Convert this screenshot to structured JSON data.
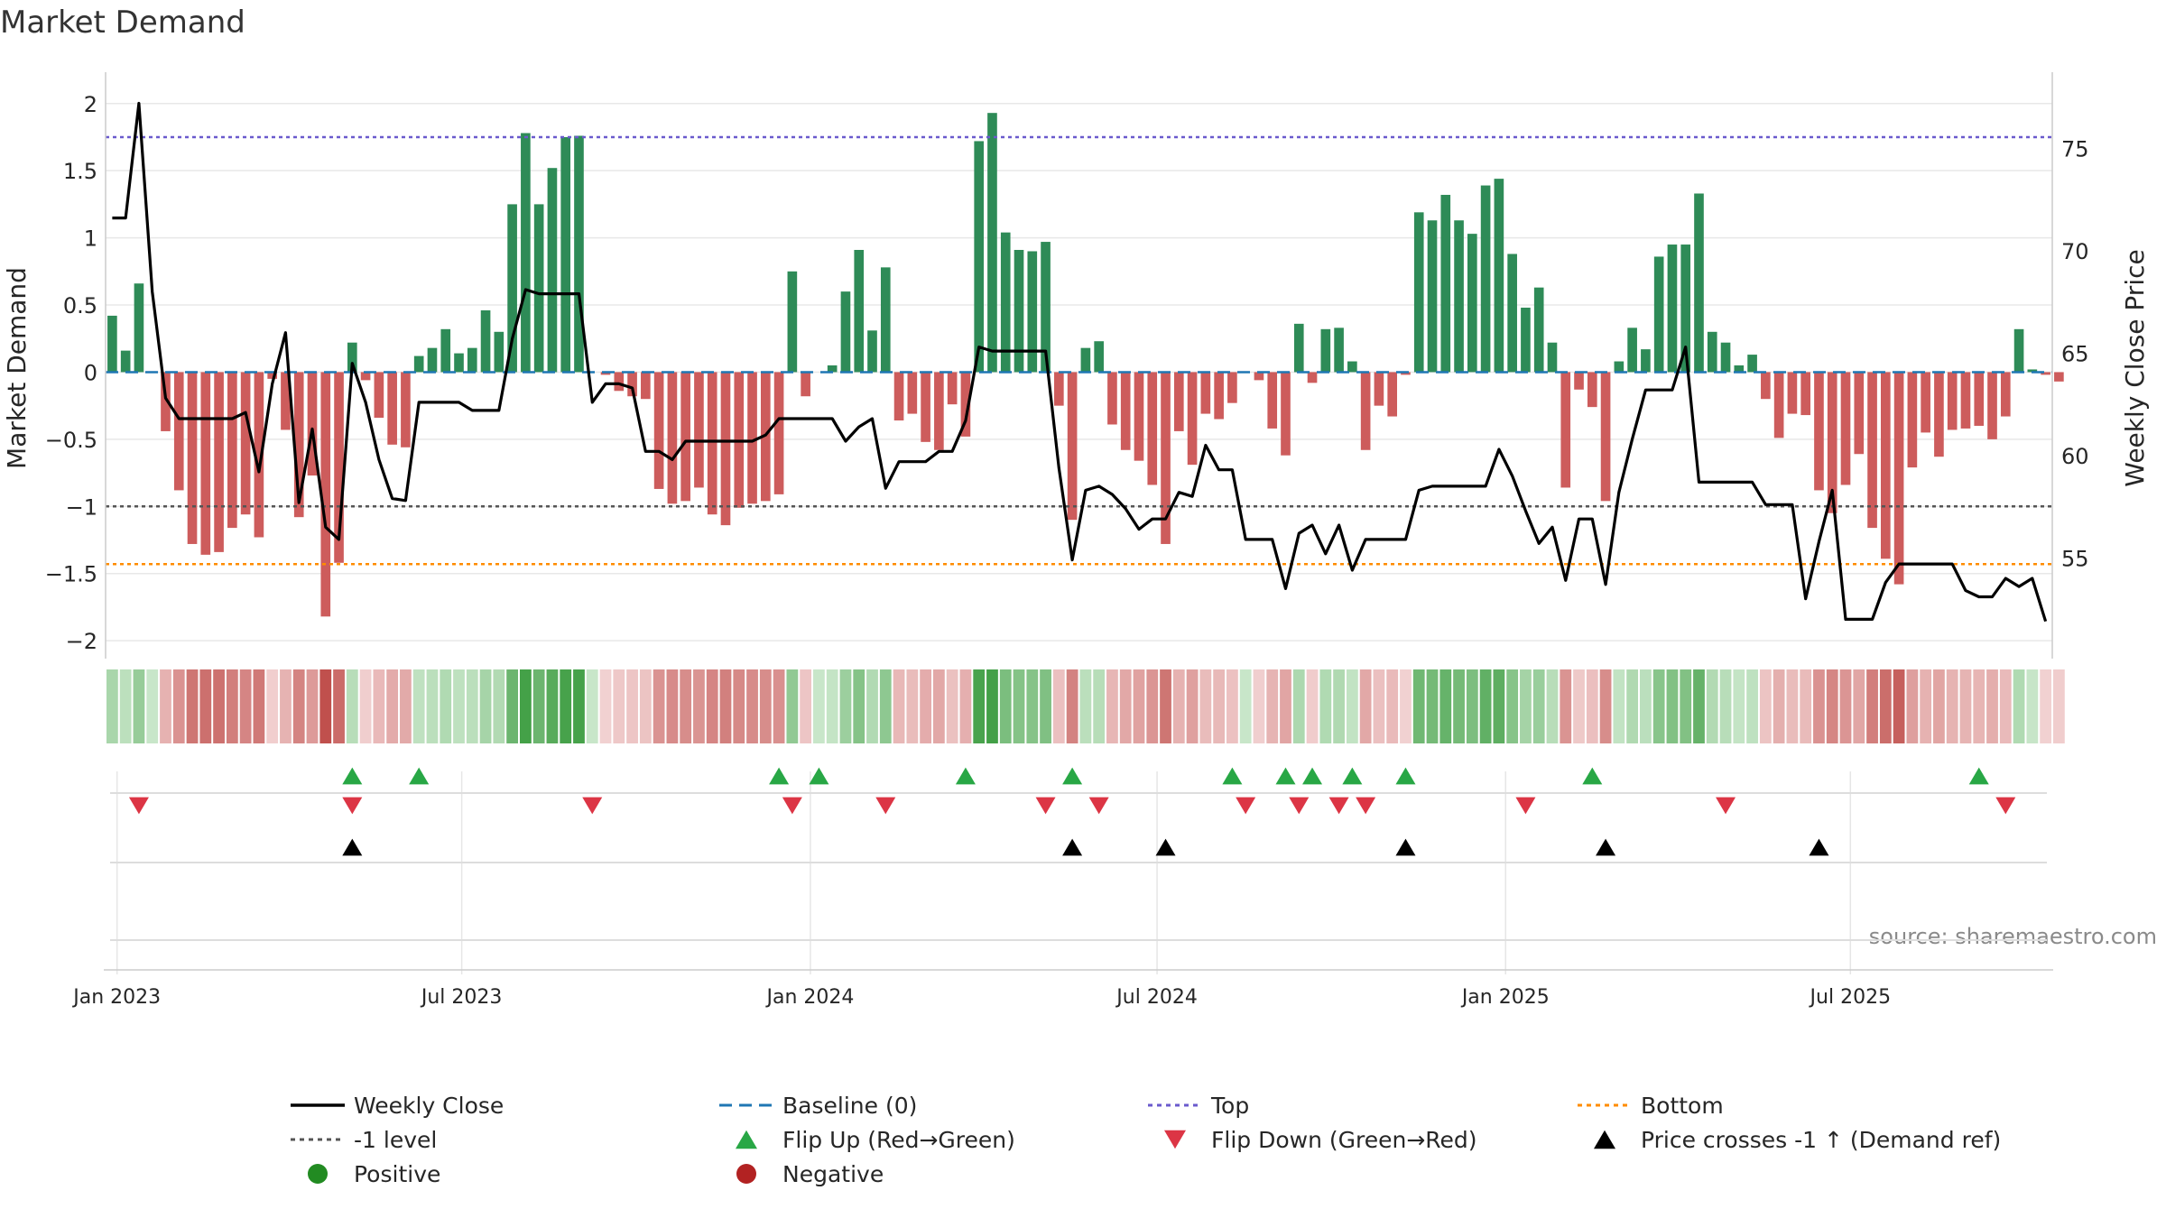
{
  "chart_data": {
    "type": "bar",
    "title": "Market Demand",
    "source": "source: sharemaestro.com",
    "ylabel_left": "Market Demand",
    "ylabel_right": "Weekly Close Price",
    "ylim_left": [
      -2.1,
      2.2
    ],
    "ylim_right": [
      50.3,
      78.5
    ],
    "yticks_left": [
      2,
      1.5,
      1,
      0.5,
      0,
      -0.5,
      -1,
      -1.5,
      -2
    ],
    "yticks_left_labels": [
      "2",
      "1.5",
      "1",
      "0.5",
      "0",
      "−0.5",
      "−1",
      "−1.5",
      "−2"
    ],
    "yticks_right": [
      75,
      70,
      65,
      60,
      55
    ],
    "yticks_right_labels": [
      "75",
      "70",
      "65",
      "60",
      "55"
    ],
    "x_start": "2022-12-26",
    "x_weeks": 146,
    "xticks": [
      {
        "label": "Jan 2023",
        "week": 0.86
      },
      {
        "label": "Jul 2023",
        "week": 26.71
      },
      {
        "label": "Jan 2024",
        "week": 52.86
      },
      {
        "label": "Jul 2024",
        "week": 78.86
      },
      {
        "label": "Jan 2025",
        "week": 105.0
      },
      {
        "label": "Jul 2025",
        "week": 130.86
      }
    ],
    "reference_lines": {
      "top": 1.75,
      "bottom": -1.43,
      "minus_one": -1.0,
      "baseline": 0
    },
    "demand": [
      0.42,
      0.16,
      0.66,
      0.0,
      -0.44,
      -0.88,
      -1.28,
      -1.36,
      -1.34,
      -1.16,
      -1.06,
      -1.23,
      -0.05,
      -0.43,
      -1.08,
      -0.77,
      -1.82,
      -1.42,
      0.22,
      -0.06,
      -0.34,
      -0.54,
      -0.56,
      0.12,
      0.18,
      0.32,
      0.14,
      0.18,
      0.46,
      0.3,
      1.25,
      1.78,
      1.25,
      1.52,
      1.75,
      1.76,
      0.0,
      -0.02,
      -0.14,
      -0.18,
      -0.2,
      -0.87,
      -0.98,
      -0.96,
      -0.86,
      -1.06,
      -1.14,
      -1.01,
      -0.98,
      -0.96,
      -0.91,
      0.75,
      -0.18,
      0.0,
      0.05,
      0.6,
      0.91,
      0.31,
      0.78,
      -0.36,
      -0.31,
      -0.52,
      -0.58,
      -0.24,
      -0.48,
      1.72,
      1.93,
      1.04,
      0.91,
      0.9,
      0.97,
      -0.25,
      -1.1,
      0.18,
      0.23,
      -0.39,
      -0.58,
      -0.66,
      -0.84,
      -1.28,
      -0.44,
      -0.69,
      -0.31,
      -0.35,
      -0.23,
      0.0,
      -0.06,
      -0.42,
      -0.62,
      0.36,
      -0.08,
      0.32,
      0.33,
      0.08,
      -0.58,
      -0.25,
      -0.33,
      -0.02,
      1.19,
      1.13,
      1.32,
      1.13,
      1.03,
      1.39,
      1.44,
      0.88,
      0.48,
      0.63,
      0.22,
      -0.86,
      -0.13,
      -0.26,
      -0.96,
      0.08,
      0.33,
      0.17,
      0.86,
      0.95,
      0.95,
      1.33,
      0.3,
      0.22,
      0.05,
      0.13,
      -0.2,
      -0.49,
      -0.31,
      -0.32,
      -0.88,
      -1.05,
      -0.84,
      -0.61,
      -1.16,
      -1.39,
      -1.58,
      -0.71,
      -0.45,
      -0.63,
      -0.43,
      -0.42,
      -0.4,
      -0.5,
      -0.33,
      0.32,
      0.02,
      -0.02,
      -0.07
    ],
    "close": [
      71.6,
      71.6,
      77.2,
      68.0,
      62.8,
      61.8,
      61.8,
      61.8,
      61.8,
      61.8,
      62.1,
      59.2,
      63.5,
      66.0,
      57.7,
      61.3,
      56.5,
      55.9,
      64.5,
      62.6,
      59.8,
      57.9,
      57.8,
      62.6,
      62.6,
      62.6,
      62.6,
      62.2,
      62.2,
      62.2,
      65.7,
      68.1,
      67.9,
      67.9,
      67.9,
      67.9,
      62.6,
      63.5,
      63.5,
      63.3,
      60.2,
      60.2,
      59.8,
      60.7,
      60.7,
      60.7,
      60.7,
      60.7,
      60.7,
      61.0,
      61.8,
      61.8,
      61.8,
      61.8,
      61.8,
      60.7,
      61.4,
      61.8,
      58.4,
      59.7,
      59.7,
      59.7,
      60.2,
      60.2,
      61.7,
      65.3,
      65.1,
      65.1,
      65.1,
      65.1,
      65.1,
      59.4,
      54.9,
      58.3,
      58.5,
      58.1,
      57.4,
      56.4,
      56.9,
      56.9,
      58.2,
      58.0,
      60.5,
      59.3,
      59.3,
      55.9,
      55.9,
      55.9,
      53.5,
      56.2,
      56.6,
      55.2,
      56.6,
      54.4,
      55.9,
      55.9,
      55.9,
      55.9,
      58.3,
      58.5,
      58.5,
      58.5,
      58.5,
      58.5,
      60.3,
      59.0,
      57.3,
      55.7,
      56.5,
      53.9,
      56.9,
      56.9,
      53.7,
      58.2,
      60.8,
      63.2,
      63.2,
      63.2,
      65.3,
      58.7,
      58.7,
      58.7,
      58.7,
      58.7,
      57.6,
      57.6,
      57.6,
      53.0,
      55.8,
      58.3,
      52.0,
      52.0,
      52.0,
      53.8,
      54.7,
      54.7,
      54.7,
      54.7,
      54.7,
      53.4,
      53.1,
      53.1,
      54.0,
      53.6,
      54.0,
      51.9
    ],
    "flip_up_weeks": [
      18,
      23,
      50,
      53,
      64,
      72,
      84,
      88,
      90,
      93,
      97,
      111,
      140
    ],
    "flip_down_weeks": [
      2,
      18,
      36,
      51,
      58,
      70,
      74,
      85,
      89,
      92,
      94,
      106,
      121,
      142
    ],
    "price_cross_weeks": [
      18,
      72,
      79,
      97,
      112,
      128
    ],
    "colors": {
      "positive": "#2e8b57",
      "negative": "#cd5c5c",
      "close_line": "#000000",
      "baseline": "#1f77b4",
      "top": "#6a5acd",
      "bottom": "#ff8c00",
      "minus_one": "#555555",
      "flip_up": "#28a745",
      "flip_down": "#dc3545",
      "price_cross": "#000000",
      "legend_positive": "#228b22",
      "legend_negative": "#b22222",
      "grid": "#e8e8e8"
    },
    "legend": [
      {
        "label": "Weekly Close",
        "symbol": "line",
        "color": "#000000"
      },
      {
        "label": "Baseline (0)",
        "symbol": "dash",
        "color": "#1f77b4"
      },
      {
        "label": "Top",
        "symbol": "dot",
        "color": "#6a5acd"
      },
      {
        "label": "Bottom",
        "symbol": "dot",
        "color": "#ff8c00"
      },
      {
        "label": "-1 level",
        "symbol": "dot",
        "color": "#555555"
      },
      {
        "label": "Flip Up (Red→Green)",
        "symbol": "tri-up",
        "color": "#28a745"
      },
      {
        "label": "Flip Down (Green→Red)",
        "symbol": "tri-down",
        "color": "#dc3545"
      },
      {
        "label": "Price crosses -1 ↑ (Demand ref)",
        "symbol": "tri-up",
        "color": "#000000"
      },
      {
        "label": "Positive",
        "symbol": "circle",
        "color": "#228b22"
      },
      {
        "label": "Negative",
        "symbol": "circle",
        "color": "#b22222"
      }
    ]
  }
}
